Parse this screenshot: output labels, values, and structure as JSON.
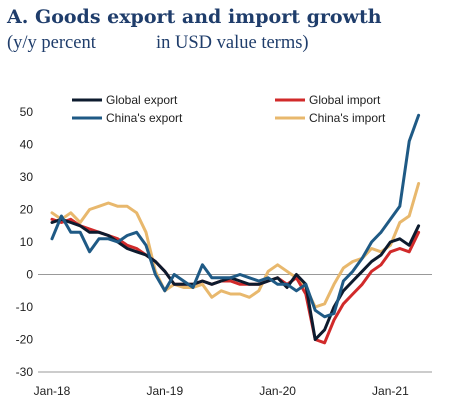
{
  "header": {
    "title": "A. Goods export and import growth",
    "subtitle": "(y/y percent             in USD value terms)"
  },
  "chart_data": {
    "type": "line",
    "title": "A. Goods export and import growth",
    "subtitle": "(y/y percent             in USD value terms)",
    "xlabel": "",
    "ylabel": "",
    "ylim": [
      -30,
      50
    ],
    "yticks": [
      -30,
      -20,
      -10,
      0,
      10,
      20,
      30,
      40,
      50
    ],
    "xticks": [
      "Jan-18",
      "Jan-19",
      "Jan-20",
      "Jan-21"
    ],
    "x_start": "Jan-18",
    "x": [
      "2018-01",
      "2018-02",
      "2018-03",
      "2018-04",
      "2018-05",
      "2018-06",
      "2018-07",
      "2018-08",
      "2018-09",
      "2018-10",
      "2018-11",
      "2018-12",
      "2019-01",
      "2019-02",
      "2019-03",
      "2019-04",
      "2019-05",
      "2019-06",
      "2019-07",
      "2019-08",
      "2019-09",
      "2019-10",
      "2019-11",
      "2019-12",
      "2020-01",
      "2020-02",
      "2020-03",
      "2020-04",
      "2020-05",
      "2020-06",
      "2020-07",
      "2020-08",
      "2020-09",
      "2020-10",
      "2020-11",
      "2020-12",
      "2021-01",
      "2021-02",
      "2021-03",
      "2021-04"
    ],
    "grid": false,
    "legend": "top",
    "series": [
      {
        "name": "Global export",
        "color": "#0d1b2e",
        "values": [
          16,
          17,
          16,
          15,
          13,
          13,
          12,
          10,
          8,
          7,
          6,
          4,
          1,
          -3,
          -3,
          -3,
          -2,
          -3,
          -2,
          -1,
          -2,
          -3,
          -3,
          -2,
          -1,
          -4,
          0,
          -3,
          -20,
          -17,
          -10,
          -5,
          -2,
          1,
          4,
          6,
          10,
          11,
          9,
          15
        ]
      },
      {
        "name": "Global import",
        "color": "#d12a2a",
        "values": [
          17,
          16,
          17,
          15,
          14,
          13,
          12,
          11,
          9,
          8,
          6,
          4,
          1,
          -3,
          -3,
          -3,
          -2,
          -3,
          -2,
          -2,
          -3,
          -3,
          -3,
          -2,
          -1,
          -3,
          -1,
          -6,
          -20,
          -21,
          -14,
          -9,
          -6,
          -3,
          1,
          3,
          7,
          8,
          7,
          13
        ]
      },
      {
        "name": "China's export",
        "color": "#1f5a85",
        "values": [
          11,
          18,
          13,
          13,
          7,
          11,
          11,
          10,
          12,
          13,
          9,
          0,
          -5,
          0,
          -2,
          -4,
          3,
          -1,
          -1,
          -1,
          0,
          -1,
          -2,
          -1,
          -3,
          -3,
          -5,
          -3,
          -11,
          -13,
          -12,
          -2,
          1,
          5,
          10,
          13,
          17,
          21,
          41,
          49
        ]
      },
      {
        "name": "China's import",
        "color": "#e8b86d",
        "values": [
          19,
          17,
          19,
          16,
          20,
          21,
          22,
          21,
          21,
          19,
          13,
          1,
          -5,
          -3,
          -4,
          -4,
          -3,
          -7,
          -5,
          -6,
          -6,
          -7,
          -5,
          1,
          3,
          1,
          -1,
          -4,
          -10,
          -9,
          -3,
          2,
          4,
          5,
          8,
          7,
          9,
          16,
          18,
          28
        ]
      }
    ]
  }
}
